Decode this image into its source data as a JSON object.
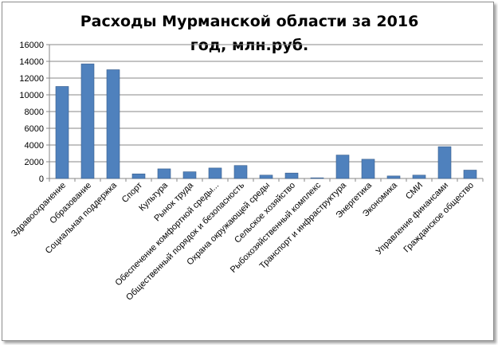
{
  "chart_data": {
    "type": "bar",
    "title_lines": [
      "Расходы Мурманской области за 2016",
      "год, млн.руб."
    ],
    "xlabel": "",
    "ylabel": "",
    "ylim": [
      0,
      16000
    ],
    "yticks": [
      0,
      2000,
      4000,
      6000,
      8000,
      10000,
      12000,
      14000,
      16000
    ],
    "grid": true,
    "legend": "none",
    "bar_color": "#4f81bd",
    "categories": [
      "Здравоохранение",
      "Образование",
      "Социальная поддержка",
      "Спорт",
      "Культура",
      "Рынок труда",
      "Обеспечение комфортной среды...",
      "Общественный порядок и безопасность",
      "Охрана окружающей среды",
      "Сельское хозяйство",
      "Рыбохозяйственный комплекс",
      "Транспорт и инфраструктура",
      "Энергетика",
      "Экономика",
      "СМИ",
      "Управление финансами",
      "Гражданское общество"
    ],
    "values": [
      11000,
      13700,
      13000,
      550,
      1150,
      800,
      1250,
      1550,
      400,
      650,
      80,
      2800,
      2300,
      300,
      400,
      3800,
      1000
    ]
  }
}
